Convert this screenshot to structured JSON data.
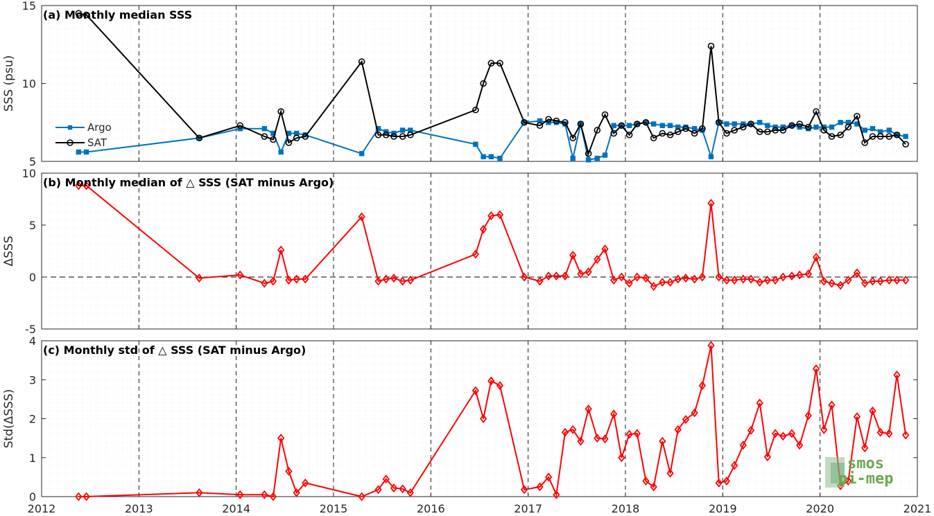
{
  "chart_data": [
    {
      "id": "a",
      "type": "line",
      "title": "(a) Monthly median SSS",
      "ylabel": "SSS (psu)",
      "xlim": [
        2012,
        2021
      ],
      "ylim": [
        5,
        15
      ],
      "yticks": [
        5,
        10,
        15
      ],
      "grid": true,
      "legend": {
        "position": "left-bottom",
        "entries": [
          "Argo",
          "SAT"
        ]
      },
      "series": [
        {
          "name": "Argo",
          "color": "#0072BD",
          "marker": "square",
          "x": [
            2012.38,
            2012.46,
            2013.62,
            2014.04,
            2014.29,
            2014.38,
            2014.46,
            2014.54,
            2014.62,
            2014.71,
            2015.29,
            2015.46,
            2015.54,
            2015.62,
            2015.71,
            2015.79,
            2016.46,
            2016.54,
            2016.62,
            2016.71,
            2016.96,
            2017.12,
            2017.21,
            2017.29,
            2017.38,
            2017.46,
            2017.54,
            2017.62,
            2017.71,
            2017.79,
            2017.88,
            2017.96,
            2018.04,
            2018.12,
            2018.21,
            2018.29,
            2018.38,
            2018.46,
            2018.54,
            2018.62,
            2018.71,
            2018.79,
            2018.88,
            2018.96,
            2019.04,
            2019.12,
            2019.21,
            2019.29,
            2019.38,
            2019.46,
            2019.54,
            2019.62,
            2019.71,
            2019.79,
            2019.88,
            2019.96,
            2020.04,
            2020.12,
            2020.21,
            2020.29,
            2020.38,
            2020.46,
            2020.54,
            2020.62,
            2020.71,
            2020.79,
            2020.88
          ],
          "y": [
            5.6,
            5.6,
            6.5,
            7.1,
            7.1,
            6.8,
            5.6,
            6.8,
            6.8,
            6.7,
            5.5,
            7.1,
            6.9,
            6.8,
            7.0,
            7.0,
            6.1,
            5.3,
            5.3,
            5.2,
            7.5,
            7.6,
            7.5,
            7.5,
            7.4,
            5.2,
            7.4,
            5.1,
            5.2,
            5.4,
            7.3,
            7.3,
            7.3,
            7.4,
            7.5,
            7.4,
            7.3,
            7.3,
            7.2,
            7.2,
            7.1,
            7.0,
            5.3,
            7.5,
            7.4,
            7.4,
            7.4,
            7.4,
            7.5,
            7.3,
            7.2,
            7.2,
            7.3,
            7.2,
            7.1,
            7.2,
            7.2,
            7.2,
            7.5,
            7.5,
            7.4,
            7.0,
            7.1,
            6.9,
            7.0,
            6.7,
            6.6
          ]
        },
        {
          "name": "SAT",
          "color": "#000000",
          "marker": "circle",
          "x": [
            2012.38,
            2012.46,
            2013.62,
            2014.04,
            2014.29,
            2014.38,
            2014.46,
            2014.54,
            2014.62,
            2014.71,
            2015.29,
            2015.46,
            2015.54,
            2015.62,
            2015.71,
            2015.79,
            2016.46,
            2016.54,
            2016.62,
            2016.71,
            2016.96,
            2017.12,
            2017.21,
            2017.29,
            2017.38,
            2017.46,
            2017.54,
            2017.62,
            2017.71,
            2017.79,
            2017.88,
            2017.96,
            2018.04,
            2018.12,
            2018.21,
            2018.29,
            2018.38,
            2018.46,
            2018.54,
            2018.62,
            2018.71,
            2018.79,
            2018.88,
            2018.96,
            2019.04,
            2019.12,
            2019.21,
            2019.29,
            2019.38,
            2019.46,
            2019.54,
            2019.62,
            2019.71,
            2019.79,
            2019.88,
            2019.96,
            2020.04,
            2020.12,
            2020.21,
            2020.29,
            2020.38,
            2020.46,
            2020.54,
            2020.62,
            2020.71,
            2020.79,
            2020.88
          ],
          "y": [
            14.5,
            14.4,
            6.5,
            7.3,
            6.6,
            6.4,
            8.2,
            6.2,
            6.5,
            6.6,
            11.4,
            6.7,
            6.7,
            6.6,
            6.6,
            6.7,
            8.3,
            10.0,
            11.3,
            11.3,
            7.5,
            7.3,
            7.7,
            7.6,
            7.5,
            6.5,
            7.4,
            5.5,
            7.0,
            8.0,
            6.8,
            7.3,
            6.7,
            7.4,
            7.5,
            6.5,
            6.8,
            6.7,
            6.9,
            7.1,
            6.8,
            7.1,
            12.4,
            7.5,
            6.8,
            7.0,
            7.2,
            7.4,
            6.9,
            6.9,
            7.0,
            7.0,
            7.3,
            7.4,
            7.2,
            8.2,
            7.0,
            6.6,
            6.7,
            7.2,
            7.9,
            6.2,
            6.6,
            6.6,
            6.6,
            6.7,
            6.1
          ]
        }
      ]
    },
    {
      "id": "b",
      "type": "line",
      "title": "(b) Monthly median of △ SSS (SAT minus Argo)",
      "ylabel": "ΔSSS",
      "xlim": [
        2012,
        2021
      ],
      "ylim": [
        -5,
        10
      ],
      "yticks": [
        -5,
        0,
        5,
        10
      ],
      "zero_line": true,
      "grid": true,
      "series": [
        {
          "color": "#FF0000",
          "marker": "diamond",
          "x": [
            2012.38,
            2012.46,
            2013.62,
            2014.04,
            2014.29,
            2014.38,
            2014.46,
            2014.54,
            2014.62,
            2014.71,
            2015.29,
            2015.46,
            2015.54,
            2015.62,
            2015.71,
            2015.79,
            2016.46,
            2016.54,
            2016.62,
            2016.71,
            2016.96,
            2017.12,
            2017.21,
            2017.29,
            2017.38,
            2017.46,
            2017.54,
            2017.62,
            2017.71,
            2017.79,
            2017.88,
            2017.96,
            2018.04,
            2018.12,
            2018.21,
            2018.29,
            2018.38,
            2018.46,
            2018.54,
            2018.62,
            2018.71,
            2018.79,
            2018.88,
            2018.96,
            2019.04,
            2019.12,
            2019.21,
            2019.29,
            2019.38,
            2019.46,
            2019.54,
            2019.62,
            2019.71,
            2019.79,
            2019.88,
            2019.96,
            2020.04,
            2020.12,
            2020.21,
            2020.29,
            2020.38,
            2020.46,
            2020.54,
            2020.62,
            2020.71,
            2020.79,
            2020.88
          ],
          "y": [
            8.8,
            8.8,
            -0.1,
            0.2,
            -0.6,
            -0.4,
            2.6,
            -0.3,
            -0.2,
            -0.2,
            5.8,
            -0.4,
            -0.2,
            -0.1,
            -0.4,
            -0.3,
            2.2,
            4.6,
            5.9,
            6.0,
            0.0,
            -0.4,
            0.1,
            0.1,
            0.1,
            2.1,
            0.3,
            0.5,
            1.7,
            2.7,
            -0.3,
            0.0,
            -0.6,
            0.0,
            -0.1,
            -0.9,
            -0.5,
            -0.5,
            -0.2,
            -0.1,
            -0.2,
            0.0,
            7.1,
            0.0,
            -0.3,
            -0.3,
            -0.2,
            -0.2,
            -0.5,
            -0.3,
            -0.3,
            0.0,
            0.1,
            0.2,
            0.3,
            1.9,
            -0.4,
            -0.6,
            -0.8,
            -0.3,
            0.4,
            -0.6,
            -0.4,
            -0.4,
            -0.3,
            -0.3,
            -0.3
          ]
        }
      ]
    },
    {
      "id": "c",
      "type": "line",
      "title": "(c) Monthly std of △ SSS (SAT minus Argo)",
      "ylabel": "Std(ΔSSS)",
      "xlim": [
        2012,
        2021
      ],
      "ylim": [
        0,
        4
      ],
      "yticks": [
        0,
        1,
        2,
        3,
        4
      ],
      "xticks": [
        "2012",
        "2013",
        "2014",
        "2015",
        "2016",
        "2017",
        "2018",
        "2019",
        "2020",
        "2021"
      ],
      "grid": true,
      "series": [
        {
          "color": "#FF0000",
          "marker": "diamond",
          "x": [
            2012.38,
            2012.46,
            2013.62,
            2014.04,
            2014.29,
            2014.38,
            2014.46,
            2014.54,
            2014.62,
            2014.71,
            2015.29,
            2015.46,
            2015.54,
            2015.62,
            2015.71,
            2015.79,
            2016.46,
            2016.54,
            2016.62,
            2016.71,
            2016.96,
            2017.12,
            2017.21,
            2017.29,
            2017.38,
            2017.46,
            2017.54,
            2017.62,
            2017.71,
            2017.79,
            2017.88,
            2017.96,
            2018.04,
            2018.12,
            2018.21,
            2018.29,
            2018.38,
            2018.46,
            2018.54,
            2018.62,
            2018.71,
            2018.79,
            2018.88,
            2018.96,
            2019.04,
            2019.12,
            2019.21,
            2019.29,
            2019.38,
            2019.46,
            2019.54,
            2019.62,
            2019.71,
            2019.79,
            2019.88,
            2019.96,
            2020.04,
            2020.12,
            2020.21,
            2020.29,
            2020.38,
            2020.46,
            2020.54,
            2020.62,
            2020.71,
            2020.79,
            2020.88
          ],
          "y": [
            0.0,
            0.0,
            0.1,
            0.05,
            0.05,
            0.0,
            1.5,
            0.65,
            0.1,
            0.35,
            0.0,
            0.18,
            0.45,
            0.22,
            0.2,
            0.1,
            2.72,
            2.0,
            2.97,
            2.85,
            0.18,
            0.25,
            0.5,
            0.05,
            1.65,
            1.72,
            1.42,
            2.25,
            1.5,
            1.48,
            2.12,
            1.0,
            1.6,
            1.62,
            0.4,
            0.25,
            1.42,
            0.6,
            1.72,
            1.98,
            2.15,
            2.85,
            3.88,
            0.35,
            0.4,
            0.8,
            1.32,
            1.7,
            2.4,
            1.02,
            1.62,
            1.55,
            1.62,
            1.32,
            2.08,
            3.28,
            1.72,
            2.35,
            0.28,
            0.4,
            2.05,
            1.25,
            2.2,
            1.65,
            1.62,
            3.12,
            1.58
          ]
        }
      ]
    }
  ],
  "logo": {
    "line1": "smos",
    "line2": "pi-mep",
    "color": "#6aa84f",
    "icon": "globe-logo-icon"
  }
}
